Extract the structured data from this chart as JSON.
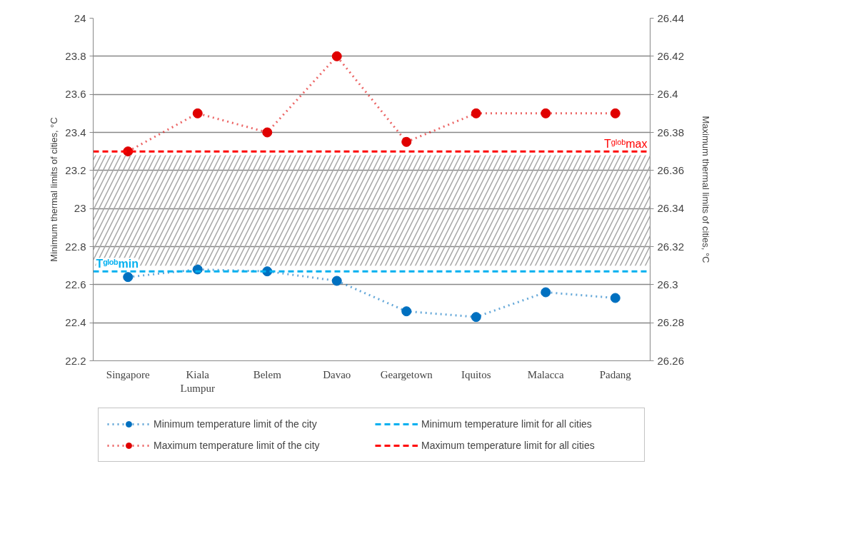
{
  "chart_data": {
    "type": "line",
    "ylabel": "Minimum thermal limits of cities, °C",
    "y2label": "Maximum thermal limits of cities, °C",
    "categories": [
      "Singapore",
      "Kiala Lumpur",
      "Belem",
      "Davao",
      "Geargetown",
      "Iquitos",
      "Malacca",
      "Padang"
    ],
    "series": [
      {
        "name": "Minimum temperature limit of the city",
        "color": "#0070c0",
        "values": [
          22.64,
          22.68,
          22.67,
          22.62,
          22.46,
          22.43,
          22.56,
          22.53
        ],
        "marker": "circle",
        "line_style": "dotted"
      },
      {
        "name": "Maximum temperature limit of the city",
        "color": "#e00000",
        "axis": "y2",
        "values": [
          26.37,
          26.39,
          26.38,
          26.42,
          26.375,
          26.39,
          26.39,
          26.39
        ],
        "marker": "circle",
        "line_style": "dotted"
      }
    ],
    "ref_lines": [
      {
        "axis": "y",
        "value": 22.67,
        "label": "Minimum temperature limit for all cities",
        "color": "#00b0f0",
        "line_style": "dashed"
      },
      {
        "axis": "y2",
        "value": 26.37,
        "label": "Maximum temperature limit for all cities",
        "color": "#ff0000",
        "line_style": "dashed"
      }
    ],
    "bands": [
      {
        "axis": "y",
        "from": 22.7,
        "to": 23.28,
        "color": "#a6a6a6"
      }
    ],
    "annotations": [
      "Tᵍˡᵒᵇmin",
      "Tᵍˡᵒᵇmax"
    ],
    "ylim": [
      22.2,
      24
    ],
    "yticks": [
      22.2,
      22.4,
      22.6,
      22.8,
      23,
      23.2,
      23.4,
      23.6,
      23.8,
      24
    ],
    "y2lim": [
      26.26,
      26.44
    ],
    "y2ticks": [
      26.26,
      26.28,
      26.3,
      26.32,
      26.34,
      26.36,
      26.38,
      26.4,
      26.42,
      26.44
    ],
    "grid": "y",
    "legend": "bottom"
  }
}
